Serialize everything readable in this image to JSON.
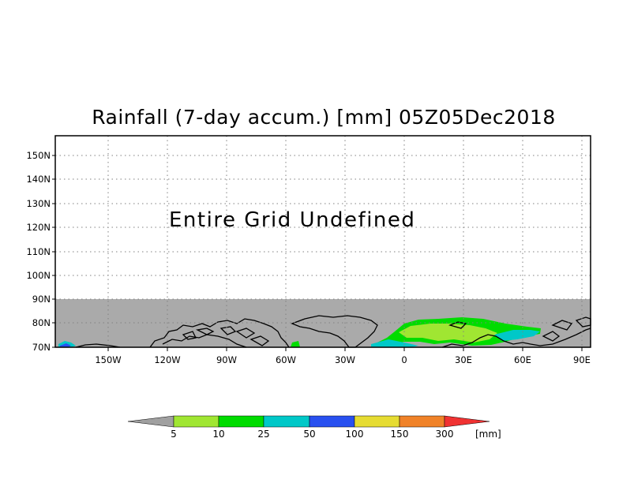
{
  "title": "Rainfall (7-day accum.) [mm] 05Z05Dec2018",
  "map": {
    "message": "Entire Grid Undefined",
    "lat_ticks": [
      "150N",
      "140N",
      "130N",
      "120N",
      "110N",
      "100N",
      "90N",
      "80N",
      "70N"
    ],
    "lon_ticks": [
      "150W",
      "120W",
      "90W",
      "60W",
      "30W",
      "0",
      "30E",
      "60E",
      "90E"
    ],
    "land_fill_color": "#aaaaaa",
    "coastline_color": "#000000",
    "grid_style": "dotted"
  },
  "colorbar": {
    "unit": "[mm]",
    "levels": [
      "5",
      "10",
      "25",
      "50",
      "100",
      "150",
      "300"
    ],
    "colors": [
      "#a0a0a0",
      "#a0e632",
      "#00dc00",
      "#00c8c8",
      "#2850f0",
      "#e6dc32",
      "#f08228",
      "#f03232"
    ]
  }
}
